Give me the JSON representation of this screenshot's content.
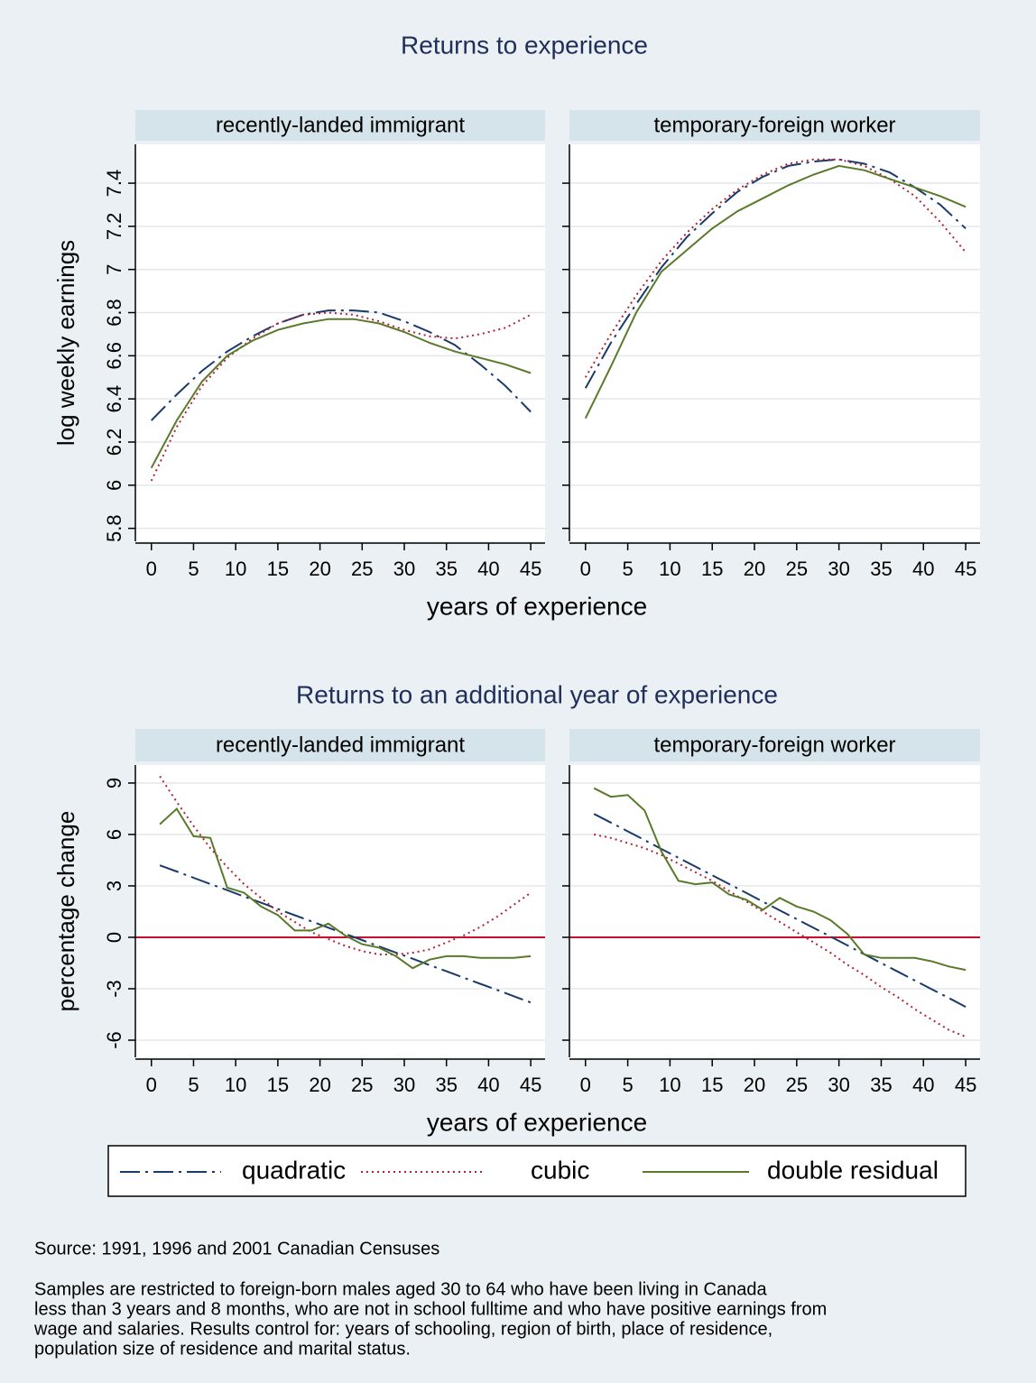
{
  "titles": [
    "Returns to experience",
    "Returns to an additional year of experience"
  ],
  "chart_data": [
    {
      "type": "line",
      "title": "recently-landed immigrant",
      "ylabel": "log weekly earnings",
      "xlabel": "years of experience",
      "x": [
        0,
        3,
        6,
        9,
        12,
        15,
        18,
        21,
        24,
        27,
        30,
        33,
        36,
        39,
        42,
        45
      ],
      "series": [
        {
          "name": "quadratic",
          "color": "#1a3a6b",
          "dash": "dashdot",
          "values": [
            6.3,
            6.42,
            6.53,
            6.62,
            6.69,
            6.75,
            6.79,
            6.81,
            6.81,
            6.8,
            6.76,
            6.71,
            6.65,
            6.56,
            6.46,
            6.34
          ]
        },
        {
          "name": "cubic",
          "color": "#b22234",
          "dash": "dot",
          "values": [
            6.02,
            6.27,
            6.46,
            6.59,
            6.68,
            6.75,
            6.79,
            6.8,
            6.79,
            6.76,
            6.72,
            6.69,
            6.68,
            6.7,
            6.73,
            6.79
          ]
        },
        {
          "name": "double residual",
          "color": "#5a7a2a",
          "dash": "solid",
          "values": [
            6.08,
            6.3,
            6.48,
            6.6,
            6.67,
            6.72,
            6.75,
            6.77,
            6.77,
            6.75,
            6.71,
            6.66,
            6.62,
            6.59,
            6.56,
            6.52
          ]
        }
      ],
      "xlim": [
        -1.9,
        46.7
      ],
      "xticks": [
        0,
        5,
        10,
        15,
        20,
        25,
        30,
        35,
        40,
        45
      ],
      "ylim": [
        5.74,
        7.58
      ],
      "yticks": [
        5.8,
        6,
        6.2,
        6.4,
        6.6,
        6.8,
        7,
        7.2,
        7.4
      ],
      "grid": true
    },
    {
      "type": "line",
      "title": "temporary-foreign worker",
      "x": [
        0,
        3,
        6,
        9,
        12,
        15,
        18,
        21,
        24,
        27,
        30,
        33,
        36,
        39,
        42,
        45
      ],
      "series": [
        {
          "name": "quadratic",
          "color": "#1a3a6b",
          "dash": "dashdot",
          "values": [
            6.45,
            6.66,
            6.84,
            7.01,
            7.15,
            7.26,
            7.36,
            7.43,
            7.48,
            7.5,
            7.51,
            7.49,
            7.45,
            7.38,
            7.3,
            7.19
          ]
        },
        {
          "name": "cubic",
          "color": "#b22234",
          "dash": "dot",
          "values": [
            6.5,
            6.7,
            6.88,
            7.04,
            7.17,
            7.28,
            7.37,
            7.44,
            7.49,
            7.51,
            7.51,
            7.48,
            7.42,
            7.34,
            7.22,
            7.08
          ]
        },
        {
          "name": "double residual",
          "color": "#5a7a2a",
          "dash": "solid",
          "values": [
            6.31,
            6.55,
            6.8,
            6.99,
            7.09,
            7.19,
            7.27,
            7.33,
            7.39,
            7.44,
            7.48,
            7.46,
            7.42,
            7.38,
            7.34,
            7.29
          ]
        }
      ],
      "xlim": [
        -1.9,
        46.7
      ],
      "xticks": [
        0,
        5,
        10,
        15,
        20,
        25,
        30,
        35,
        40,
        45
      ],
      "ylim": [
        5.74,
        7.58
      ],
      "yticks": [
        5.8,
        6,
        6.2,
        6.4,
        6.6,
        6.8,
        7,
        7.2,
        7.4
      ],
      "grid": true
    },
    {
      "type": "line",
      "title": "recently-landed immigrant",
      "ylabel": "percentage change",
      "xlabel": "years of experience",
      "x": [
        1,
        3,
        5,
        7,
        9,
        11,
        13,
        15,
        17,
        19,
        21,
        23,
        25,
        27,
        29,
        31,
        33,
        35,
        37,
        39,
        41,
        43,
        45
      ],
      "series": [
        {
          "name": "quadratic",
          "color": "#1a3a6b",
          "dash": "dashdot",
          "values": [
            4.2,
            3.84,
            3.47,
            3.11,
            2.75,
            2.38,
            2.02,
            1.65,
            1.29,
            0.93,
            0.56,
            0.2,
            -0.16,
            -0.53,
            -0.89,
            -1.25,
            -1.62,
            -1.98,
            -2.35,
            -2.71,
            -3.07,
            -3.44,
            -3.8
          ]
        },
        {
          "name": "cubic",
          "color": "#b22234",
          "dash": "dot",
          "values": [
            9.4,
            7.9,
            6.5,
            5.2,
            4.1,
            3.1,
            2.3,
            1.5,
            0.9,
            0.3,
            -0.1,
            -0.5,
            -0.8,
            -1.0,
            -1.0,
            -0.9,
            -0.7,
            -0.3,
            0.1,
            0.6,
            1.2,
            1.9,
            2.6
          ]
        },
        {
          "name": "double residual",
          "color": "#5a7a2a",
          "dash": "solid",
          "values": [
            6.6,
            7.5,
            5.9,
            5.8,
            2.9,
            2.6,
            1.8,
            1.3,
            0.4,
            0.4,
            0.8,
            0.1,
            -0.4,
            -0.6,
            -1.1,
            -1.8,
            -1.3,
            -1.1,
            -1.1,
            -1.2,
            -1.2,
            -1.2,
            -1.1
          ]
        }
      ],
      "xlim": [
        -1.9,
        46.7
      ],
      "xticks": [
        0,
        5,
        10,
        15,
        20,
        25,
        30,
        35,
        40,
        45
      ],
      "ylim": [
        -7.0,
        10.05
      ],
      "yticks": [
        -6,
        -3,
        0,
        3,
        6,
        9
      ],
      "grid": true,
      "hline": 0,
      "hline_color": "#c8102e"
    },
    {
      "type": "line",
      "title": "temporary-foreign worker",
      "x": [
        1,
        3,
        5,
        7,
        9,
        11,
        13,
        15,
        17,
        19,
        21,
        23,
        25,
        27,
        29,
        31,
        33,
        35,
        37,
        39,
        41,
        43,
        45
      ],
      "series": [
        {
          "name": "quadratic",
          "color": "#1a3a6b",
          "dash": "dashdot",
          "values": [
            7.2,
            6.69,
            6.18,
            5.67,
            5.15,
            4.64,
            4.13,
            3.62,
            3.11,
            2.6,
            2.08,
            1.57,
            1.06,
            0.55,
            0.04,
            -0.47,
            -0.99,
            -1.5,
            -2.01,
            -2.52,
            -3.03,
            -3.54,
            -4.06
          ]
        },
        {
          "name": "cubic",
          "color": "#b22234",
          "dash": "dot",
          "values": [
            6.0,
            5.8,
            5.5,
            5.2,
            4.8,
            4.3,
            3.8,
            3.3,
            2.7,
            2.1,
            1.5,
            0.9,
            0.3,
            -0.3,
            -0.9,
            -1.6,
            -2.2,
            -2.9,
            -3.5,
            -4.2,
            -4.8,
            -5.4,
            -5.8
          ]
        },
        {
          "name": "double residual",
          "color": "#5a7a2a",
          "dash": "solid",
          "values": [
            8.7,
            8.2,
            8.3,
            7.4,
            5.0,
            3.3,
            3.1,
            3.2,
            2.5,
            2.2,
            1.6,
            2.3,
            1.8,
            1.5,
            1.0,
            0.2,
            -1.0,
            -1.2,
            -1.2,
            -1.2,
            -1.4,
            -1.7,
            -1.9
          ]
        }
      ],
      "xlim": [
        -1.9,
        46.7
      ],
      "xticks": [
        0,
        5,
        10,
        15,
        20,
        25,
        30,
        35,
        40,
        45
      ],
      "ylim": [
        -7.0,
        10.05
      ],
      "yticks": [
        -6,
        -3,
        0,
        3,
        6,
        9
      ],
      "grid": true,
      "hline": 0,
      "hline_color": "#c8102e"
    }
  ],
  "notes": {
    "source": "Source: 1991, 1996 and 2001 Canadian Censuses",
    "text": [
      "Samples are restricted to foreign-born males aged 30 to 64 who have been living in Canada",
      "less than 3 years and 8 months, who are not in school fulltime and who have positive earnings from",
      "wage and salaries. Results control for: years of schooling, region of birth, place of residence,",
      "population size of residence and marital status."
    ]
  }
}
